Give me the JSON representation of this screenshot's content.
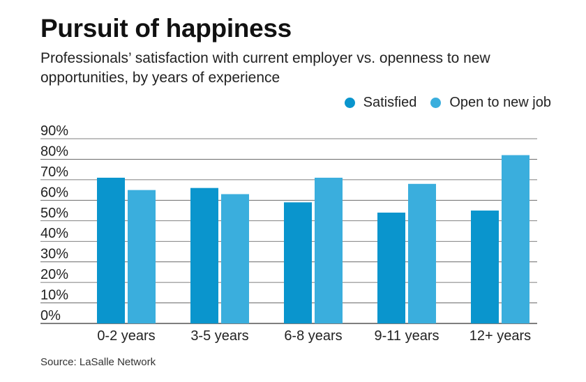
{
  "chart_data": {
    "type": "bar",
    "title": "Pursuit of happiness",
    "subtitle": "Professionals’ satisfaction with current employer vs. openness to new opportunities, by years of experience",
    "categories": [
      "0-2 years",
      "3-5 years",
      "6-8 years",
      "9-11 years",
      "12+ years"
    ],
    "series": [
      {
        "name": "Satisfied",
        "color": "#0a95cd",
        "values": [
          71,
          66,
          59,
          54,
          55
        ]
      },
      {
        "name": "Open to new job",
        "color": "#3aaedd",
        "values": [
          65,
          63,
          71,
          68,
          82
        ]
      }
    ],
    "ylim": [
      0,
      90
    ],
    "yticks": [
      "0%",
      "10%",
      "20%",
      "30%",
      "40%",
      "50%",
      "60%",
      "70%",
      "80%",
      "90%"
    ],
    "xlabel": "",
    "ylabel": "",
    "grid": true,
    "legend_position": "top-right",
    "source": "Source: LaSalle Network"
  }
}
